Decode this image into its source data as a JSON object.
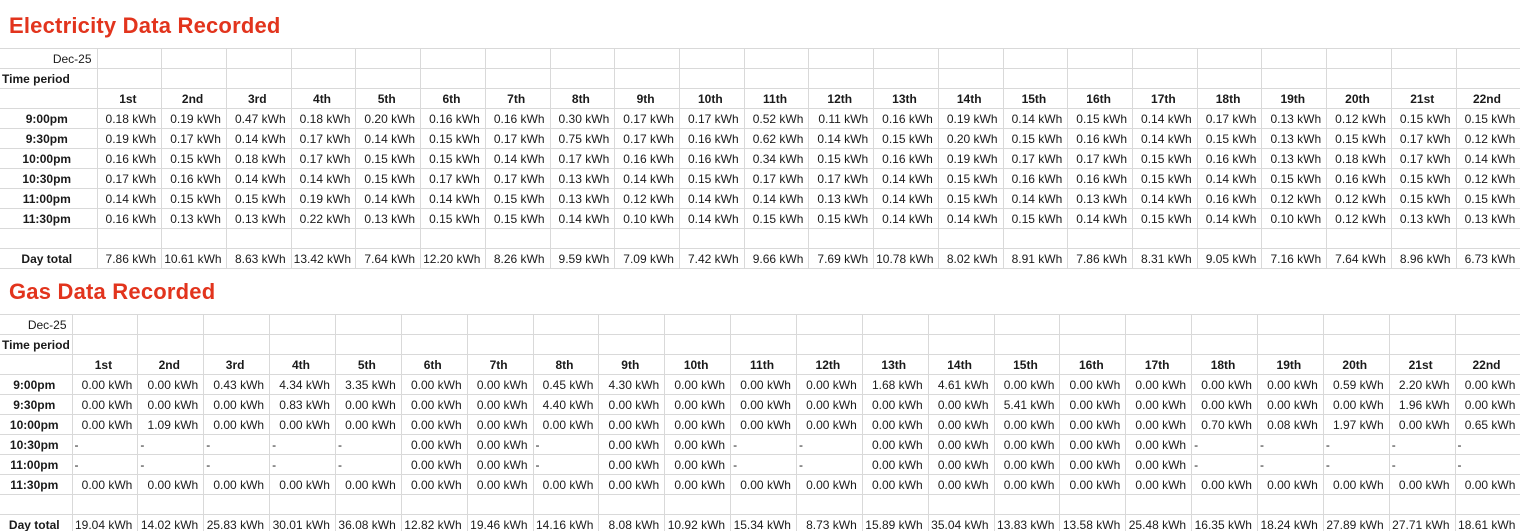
{
  "colors": {
    "title": "#e2341d",
    "shading": "#dae2f2",
    "gridline": "#d9d9d9",
    "total_underline": "#548235"
  },
  "electricity": {
    "title": "Electricity Data Recorded",
    "date": "Dec-25",
    "time_period_label": "Time period",
    "day_total_label": "Day total",
    "unit": "kWh",
    "columns": [
      "1st",
      "2nd",
      "3rd",
      "4th",
      "5th",
      "6th",
      "7th",
      "8th",
      "9th",
      "10th",
      "11th",
      "12th",
      "13th",
      "14th",
      "15th",
      "16th",
      "17th",
      "18th",
      "19th",
      "20th",
      "21st",
      "22nd"
    ],
    "rows": [
      {
        "time": "9:00pm",
        "values": [
          "0.18 kWh",
          "0.19 kWh",
          "0.47 kWh",
          "0.18 kWh",
          "0.20 kWh",
          "0.16 kWh",
          "0.16 kWh",
          "0.30 kWh",
          "0.17 kWh",
          "0.17 kWh",
          "0.52 kWh",
          "0.11 kWh",
          "0.16 kWh",
          "0.19 kWh",
          "0.14 kWh",
          "0.15 kWh",
          "0.14 kWh",
          "0.17 kWh",
          "0.13 kWh",
          "0.12 kWh",
          "0.15 kWh",
          "0.15 kWh"
        ]
      },
      {
        "time": "9:30pm",
        "values": [
          "0.19 kWh",
          "0.17 kWh",
          "0.14 kWh",
          "0.17 kWh",
          "0.14 kWh",
          "0.15 kWh",
          "0.17 kWh",
          "0.75 kWh",
          "0.17 kWh",
          "0.16 kWh",
          "0.62 kWh",
          "0.14 kWh",
          "0.15 kWh",
          "0.20 kWh",
          "0.15 kWh",
          "0.16 kWh",
          "0.14 kWh",
          "0.15 kWh",
          "0.13 kWh",
          "0.15 kWh",
          "0.17 kWh",
          "0.12 kWh"
        ]
      },
      {
        "time": "10:00pm",
        "values": [
          "0.16 kWh",
          "0.15 kWh",
          "0.18 kWh",
          "0.17 kWh",
          "0.15 kWh",
          "0.15 kWh",
          "0.14 kWh",
          "0.17 kWh",
          "0.16 kWh",
          "0.16 kWh",
          "0.34 kWh",
          "0.15 kWh",
          "0.16 kWh",
          "0.19 kWh",
          "0.17 kWh",
          "0.17 kWh",
          "0.15 kWh",
          "0.16 kWh",
          "0.13 kWh",
          "0.18 kWh",
          "0.17 kWh",
          "0.14 kWh"
        ]
      },
      {
        "time": "10:30pm",
        "values": [
          "0.17 kWh",
          "0.16 kWh",
          "0.14 kWh",
          "0.14 kWh",
          "0.15 kWh",
          "0.17 kWh",
          "0.17 kWh",
          "0.13 kWh",
          "0.14 kWh",
          "0.15 kWh",
          "0.17 kWh",
          "0.17 kWh",
          "0.14 kWh",
          "0.15 kWh",
          "0.16 kWh",
          "0.16 kWh",
          "0.15 kWh",
          "0.14 kWh",
          "0.15 kWh",
          "0.16 kWh",
          "0.15 kWh",
          "0.12 kWh"
        ]
      },
      {
        "time": "11:00pm",
        "values": [
          "0.14 kWh",
          "0.15 kWh",
          "0.15 kWh",
          "0.19 kWh",
          "0.14 kWh",
          "0.14 kWh",
          "0.15 kWh",
          "0.13 kWh",
          "0.12 kWh",
          "0.14 kWh",
          "0.14 kWh",
          "0.13 kWh",
          "0.14 kWh",
          "0.15 kWh",
          "0.14 kWh",
          "0.13 kWh",
          "0.14 kWh",
          "0.16 kWh",
          "0.12 kWh",
          "0.12 kWh",
          "0.15 kWh",
          "0.15 kWh"
        ]
      },
      {
        "time": "11:30pm",
        "values": [
          "0.16 kWh",
          "0.13 kWh",
          "0.13 kWh",
          "0.22 kWh",
          "0.13 kWh",
          "0.15 kWh",
          "0.15 kWh",
          "0.14 kWh",
          "0.10 kWh",
          "0.14 kWh",
          "0.15 kWh",
          "0.15 kWh",
          "0.14 kWh",
          "0.14 kWh",
          "0.15 kWh",
          "0.14 kWh",
          "0.15 kWh",
          "0.14 kWh",
          "0.10 kWh",
          "0.12 kWh",
          "0.13 kWh",
          "0.13 kWh"
        ]
      }
    ],
    "day_totals": [
      "7.86 kWh",
      "10.61 kWh",
      "8.63 kWh",
      "13.42 kWh",
      "7.64 kWh",
      "12.20 kWh",
      "8.26 kWh",
      "9.59 kWh",
      "7.09 kWh",
      "7.42 kWh",
      "9.66 kWh",
      "7.69 kWh",
      "10.78 kWh",
      "8.02 kWh",
      "8.91 kWh",
      "7.86 kWh",
      "8.31 kWh",
      "9.05 kWh",
      "7.16 kWh",
      "7.64 kWh",
      "8.96 kWh",
      "6.73 kWh"
    ],
    "shaded_day_columns": [
      1,
      2,
      3,
      4,
      5,
      8,
      9,
      10,
      11,
      12,
      15,
      16,
      17,
      18,
      19,
      22
    ]
  },
  "gas": {
    "title": "Gas Data Recorded",
    "date": "Dec-25",
    "time_period_label": "Time period",
    "day_total_label": "Day total",
    "unit": "kWh",
    "columns": [
      "1st",
      "2nd",
      "3rd",
      "4th",
      "5th",
      "6th",
      "7th",
      "8th",
      "9th",
      "10th",
      "11th",
      "12th",
      "13th",
      "14th",
      "15th",
      "16th",
      "17th",
      "18th",
      "19th",
      "20th",
      "21st",
      "22nd"
    ],
    "rows": [
      {
        "time": "9:00pm",
        "values": [
          "0.00 kWh",
          "0.00 kWh",
          "0.43 kWh",
          "4.34 kWh",
          "3.35 kWh",
          "0.00 kWh",
          "0.00 kWh",
          "0.45 kWh",
          "4.30 kWh",
          "0.00 kWh",
          "0.00 kWh",
          "0.00 kWh",
          "1.68 kWh",
          "4.61 kWh",
          "0.00 kWh",
          "0.00 kWh",
          "0.00 kWh",
          "0.00 kWh",
          "0.00 kWh",
          "0.59 kWh",
          "2.20 kWh",
          "0.00 kWh"
        ]
      },
      {
        "time": "9:30pm",
        "values": [
          "0.00 kWh",
          "0.00 kWh",
          "0.00 kWh",
          "0.83 kWh",
          "0.00 kWh",
          "0.00 kWh",
          "0.00 kWh",
          "4.40 kWh",
          "0.00 kWh",
          "0.00 kWh",
          "0.00 kWh",
          "0.00 kWh",
          "0.00 kWh",
          "0.00 kWh",
          "5.41 kWh",
          "0.00 kWh",
          "0.00 kWh",
          "0.00 kWh",
          "0.00 kWh",
          "0.00 kWh",
          "1.96 kWh",
          "0.00 kWh"
        ]
      },
      {
        "time": "10:00pm",
        "values": [
          "0.00 kWh",
          "1.09 kWh",
          "0.00 kWh",
          "0.00 kWh",
          "0.00 kWh",
          "0.00 kWh",
          "0.00 kWh",
          "0.00 kWh",
          "0.00 kWh",
          "0.00 kWh",
          "0.00 kWh",
          "0.00 kWh",
          "0.00 kWh",
          "0.00 kWh",
          "0.00 kWh",
          "0.00 kWh",
          "0.00 kWh",
          "0.70 kWh",
          "0.08 kWh",
          "1.97 kWh",
          "0.00 kWh",
          "0.65 kWh"
        ]
      },
      {
        "time": "10:30pm",
        "values": [
          "-",
          "-",
          "-",
          "-",
          "-",
          "0.00 kWh",
          "0.00 kWh",
          "-",
          "0.00 kWh",
          "0.00 kWh",
          "-",
          "-",
          "0.00 kWh",
          "0.00 kWh",
          "0.00 kWh",
          "0.00 kWh",
          "0.00 kWh",
          "-",
          "-",
          "-",
          "-",
          "-"
        ]
      },
      {
        "time": "11:00pm",
        "values": [
          "-",
          "-",
          "-",
          "-",
          "-",
          "0.00 kWh",
          "0.00 kWh",
          "-",
          "0.00 kWh",
          "0.00 kWh",
          "-",
          "-",
          "0.00 kWh",
          "0.00 kWh",
          "0.00 kWh",
          "0.00 kWh",
          "0.00 kWh",
          "-",
          "-",
          "-",
          "-",
          "-"
        ]
      },
      {
        "time": "11:30pm",
        "values": [
          "0.00 kWh",
          "0.00 kWh",
          "0.00 kWh",
          "0.00 kWh",
          "0.00 kWh",
          "0.00 kWh",
          "0.00 kWh",
          "0.00 kWh",
          "0.00 kWh",
          "0.00 kWh",
          "0.00 kWh",
          "0.00 kWh",
          "0.00 kWh",
          "0.00 kWh",
          "0.00 kWh",
          "0.00 kWh",
          "0.00 kWh",
          "0.00 kWh",
          "0.00 kWh",
          "0.00 kWh",
          "0.00 kWh",
          "0.00 kWh"
        ]
      }
    ],
    "day_totals": [
      "19.04 kWh",
      "14.02 kWh",
      "25.83 kWh",
      "30.01 kWh",
      "36.08 kWh",
      "12.82 kWh",
      "19.46 kWh",
      "14.16 kWh",
      "8.08 kWh",
      "10.92 kWh",
      "15.34 kWh",
      "8.73 kWh",
      "15.89 kWh",
      "35.04 kWh",
      "13.83 kWh",
      "13.58 kWh",
      "25.48 kWh",
      "16.35 kWh",
      "18.24 kWh",
      "27.89 kWh",
      "27.71 kWh",
      "18.61 kWh"
    ],
    "shaded_day_columns": []
  }
}
